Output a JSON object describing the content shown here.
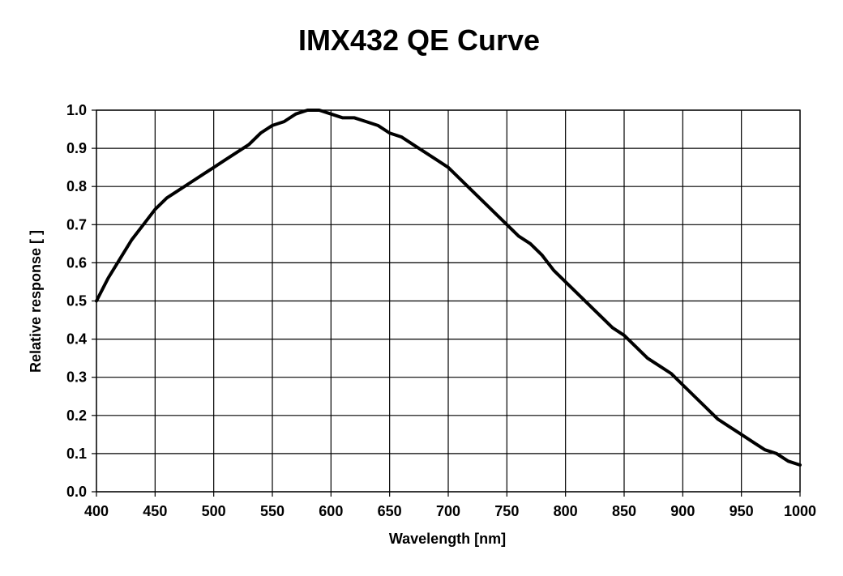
{
  "chart_data": {
    "type": "line",
    "title": "IMX432 QE Curve",
    "xlabel": "Wavelength [nm]",
    "ylabel": "Relative response [ ]",
    "xlim": [
      400,
      1000
    ],
    "ylim": [
      0.0,
      1.0
    ],
    "xticks": [
      "400",
      "450",
      "500",
      "550",
      "600",
      "650",
      "700",
      "750",
      "800",
      "850",
      "900",
      "950",
      "1000"
    ],
    "yticks": [
      "0.0",
      "0.1",
      "0.2",
      "0.3",
      "0.4",
      "0.5",
      "0.6",
      "0.7",
      "0.8",
      "0.9",
      "1.0"
    ],
    "grid": true,
    "legend": false,
    "series": [
      {
        "x": [
          400,
          410,
          420,
          430,
          440,
          450,
          460,
          470,
          480,
          490,
          500,
          510,
          520,
          530,
          540,
          550,
          560,
          570,
          580,
          590,
          600,
          610,
          620,
          630,
          640,
          650,
          660,
          670,
          680,
          690,
          700,
          710,
          720,
          730,
          740,
          750,
          760,
          770,
          780,
          790,
          800,
          810,
          820,
          830,
          840,
          850,
          860,
          870,
          880,
          890,
          900,
          910,
          920,
          930,
          940,
          950,
          960,
          970,
          980,
          990,
          1000
        ],
        "values": [
          0.5,
          0.56,
          0.61,
          0.66,
          0.7,
          0.74,
          0.77,
          0.79,
          0.81,
          0.83,
          0.85,
          0.87,
          0.89,
          0.91,
          0.94,
          0.96,
          0.97,
          0.99,
          1.0,
          1.0,
          0.99,
          0.98,
          0.98,
          0.97,
          0.96,
          0.94,
          0.93,
          0.91,
          0.89,
          0.87,
          0.85,
          0.82,
          0.79,
          0.76,
          0.73,
          0.7,
          0.67,
          0.65,
          0.62,
          0.58,
          0.55,
          0.52,
          0.49,
          0.46,
          0.43,
          0.41,
          0.38,
          0.35,
          0.33,
          0.31,
          0.28,
          0.25,
          0.22,
          0.19,
          0.17,
          0.15,
          0.13,
          0.11,
          0.1,
          0.08,
          0.07
        ],
        "color": "#000000"
      }
    ]
  }
}
